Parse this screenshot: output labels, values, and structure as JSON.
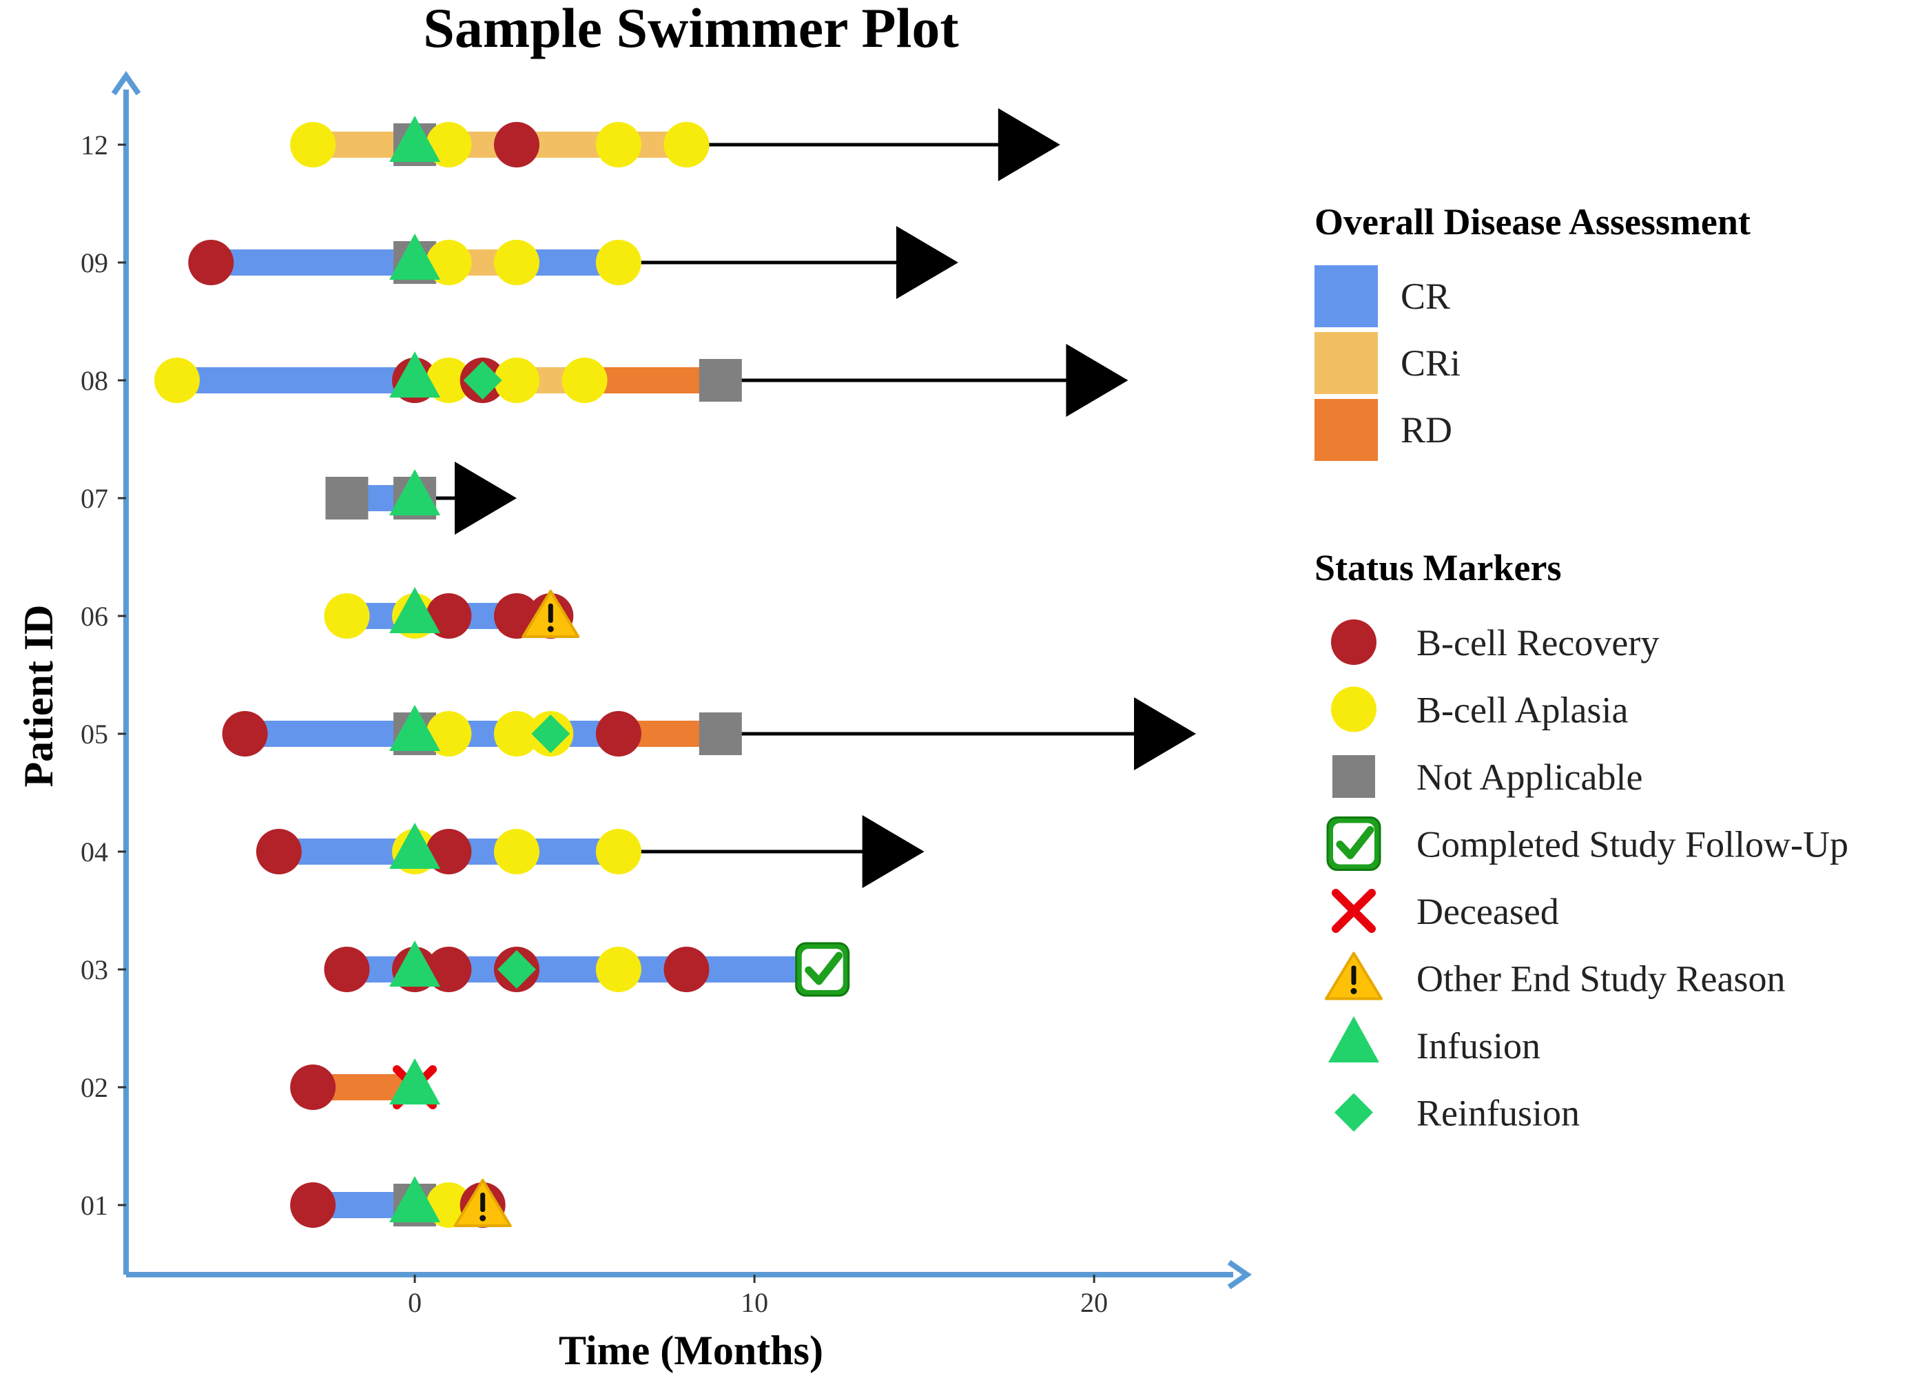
{
  "colors": {
    "CR": "#6495ED",
    "CRi": "#F2C063",
    "RD": "#ED7D31",
    "axis": "#5B9BD5",
    "recovery": "#B22228",
    "aplasia": "#F7EB0E",
    "na": "#808080",
    "completed": "#1DA01D",
    "deceased": "#E8000B",
    "other_end": "#FFC107",
    "infusion": "#22D36B",
    "reinfusion": "#22D36B",
    "arrow": "#000000"
  },
  "chart_data": {
    "type": "swimmer",
    "title": "Sample Swimmer Plot",
    "xlabel": "Time (Months)",
    "ylabel": "Patient ID",
    "xlim": [
      -8.5,
      24.5
    ],
    "x_ticks": [
      0,
      10,
      20
    ],
    "patients": [
      "01",
      "02",
      "03",
      "04",
      "05",
      "06",
      "07",
      "08",
      "09",
      "12"
    ],
    "segments": [
      {
        "patient": "01",
        "start": -3,
        "end": 2,
        "status": "CR"
      },
      {
        "patient": "02",
        "start": -3,
        "end": 0,
        "status": "RD"
      },
      {
        "patient": "03",
        "start": -2,
        "end": 12,
        "status": "CR"
      },
      {
        "patient": "04",
        "start": -4,
        "end": 6,
        "status": "CR"
      },
      {
        "patient": "05",
        "start": -5,
        "end": 6,
        "status": "CR"
      },
      {
        "patient": "05",
        "start": 6,
        "end": 9,
        "status": "RD"
      },
      {
        "patient": "06",
        "start": -2,
        "end": 4,
        "status": "CR"
      },
      {
        "patient": "07",
        "start": -2,
        "end": 0,
        "status": "CR"
      },
      {
        "patient": "08",
        "start": -7,
        "end": 0,
        "status": "CR"
      },
      {
        "patient": "08",
        "start": 0,
        "end": 5,
        "status": "CRi"
      },
      {
        "patient": "08",
        "start": 5,
        "end": 9,
        "status": "RD"
      },
      {
        "patient": "09",
        "start": -6,
        "end": 0,
        "status": "CR"
      },
      {
        "patient": "09",
        "start": 0,
        "end": 3,
        "status": "CRi"
      },
      {
        "patient": "09",
        "start": 3,
        "end": 6,
        "status": "CR"
      },
      {
        "patient": "12",
        "start": -3,
        "end": 8,
        "status": "CRi"
      }
    ],
    "arrows": [
      {
        "patient": "04",
        "start": 6,
        "end": 15
      },
      {
        "patient": "05",
        "start": 9,
        "end": 23
      },
      {
        "patient": "07",
        "start": 0,
        "end": 3
      },
      {
        "patient": "08",
        "start": 9,
        "end": 21
      },
      {
        "patient": "09",
        "start": 6,
        "end": 16
      },
      {
        "patient": "12",
        "start": 8,
        "end": 19
      }
    ],
    "markers": [
      {
        "patient": "01",
        "time": -3,
        "type": "recovery"
      },
      {
        "patient": "01",
        "time": 0,
        "type": "na"
      },
      {
        "patient": "01",
        "time": 1,
        "type": "aplasia"
      },
      {
        "patient": "01",
        "time": 2,
        "type": "recovery"
      },
      {
        "patient": "01",
        "time": 2,
        "type": "other_end"
      },
      {
        "patient": "01",
        "time": 0,
        "type": "infusion"
      },
      {
        "patient": "02",
        "time": -3,
        "type": "recovery"
      },
      {
        "patient": "02",
        "time": 0,
        "type": "deceased"
      },
      {
        "patient": "02",
        "time": 0,
        "type": "infusion"
      },
      {
        "patient": "03",
        "time": -2,
        "type": "recovery"
      },
      {
        "patient": "03",
        "time": 0,
        "type": "recovery"
      },
      {
        "patient": "03",
        "time": 1,
        "type": "recovery"
      },
      {
        "patient": "03",
        "time": 3,
        "type": "recovery"
      },
      {
        "patient": "03",
        "time": 6,
        "type": "aplasia"
      },
      {
        "patient": "03",
        "time": 8,
        "type": "recovery"
      },
      {
        "patient": "03",
        "time": 12,
        "type": "completed"
      },
      {
        "patient": "03",
        "time": 3,
        "type": "reinfusion"
      },
      {
        "patient": "03",
        "time": 0,
        "type": "infusion"
      },
      {
        "patient": "04",
        "time": -4,
        "type": "recovery"
      },
      {
        "patient": "04",
        "time": 0,
        "type": "aplasia"
      },
      {
        "patient": "04",
        "time": 1,
        "type": "recovery"
      },
      {
        "patient": "04",
        "time": 3,
        "type": "aplasia"
      },
      {
        "patient": "04",
        "time": 6,
        "type": "aplasia"
      },
      {
        "patient": "04",
        "time": 0,
        "type": "infusion"
      },
      {
        "patient": "05",
        "time": -5,
        "type": "recovery"
      },
      {
        "patient": "05",
        "time": 0,
        "type": "na"
      },
      {
        "patient": "05",
        "time": 1,
        "type": "aplasia"
      },
      {
        "patient": "05",
        "time": 3,
        "type": "aplasia"
      },
      {
        "patient": "05",
        "time": 4,
        "type": "aplasia"
      },
      {
        "patient": "05",
        "time": 6,
        "type": "recovery"
      },
      {
        "patient": "05",
        "time": 9,
        "type": "na"
      },
      {
        "patient": "05",
        "time": 4,
        "type": "reinfusion"
      },
      {
        "patient": "05",
        "time": 0,
        "type": "infusion"
      },
      {
        "patient": "06",
        "time": -2,
        "type": "aplasia"
      },
      {
        "patient": "06",
        "time": 0,
        "type": "aplasia"
      },
      {
        "patient": "06",
        "time": 1,
        "type": "recovery"
      },
      {
        "patient": "06",
        "time": 3,
        "type": "recovery"
      },
      {
        "patient": "06",
        "time": 4,
        "type": "recovery"
      },
      {
        "patient": "06",
        "time": 4,
        "type": "other_end"
      },
      {
        "patient": "06",
        "time": 0,
        "type": "infusion"
      },
      {
        "patient": "07",
        "time": -2,
        "type": "na"
      },
      {
        "patient": "07",
        "time": 0,
        "type": "na"
      },
      {
        "patient": "07",
        "time": 0,
        "type": "infusion"
      },
      {
        "patient": "08",
        "time": -7,
        "type": "aplasia"
      },
      {
        "patient": "08",
        "time": 0,
        "type": "recovery"
      },
      {
        "patient": "08",
        "time": 1,
        "type": "aplasia"
      },
      {
        "patient": "08",
        "time": 2,
        "type": "recovery"
      },
      {
        "patient": "08",
        "time": 3,
        "type": "aplasia"
      },
      {
        "patient": "08",
        "time": 5,
        "type": "aplasia"
      },
      {
        "patient": "08",
        "time": 9,
        "type": "na"
      },
      {
        "patient": "08",
        "time": 2,
        "type": "reinfusion"
      },
      {
        "patient": "08",
        "time": 0,
        "type": "infusion"
      },
      {
        "patient": "09",
        "time": -6,
        "type": "recovery"
      },
      {
        "patient": "09",
        "time": 0,
        "type": "na"
      },
      {
        "patient": "09",
        "time": 1,
        "type": "aplasia"
      },
      {
        "patient": "09",
        "time": 3,
        "type": "aplasia"
      },
      {
        "patient": "09",
        "time": 6,
        "type": "aplasia"
      },
      {
        "patient": "09",
        "time": 0,
        "type": "infusion"
      },
      {
        "patient": "12",
        "time": -3,
        "type": "aplasia"
      },
      {
        "patient": "12",
        "time": 0,
        "type": "na"
      },
      {
        "patient": "12",
        "time": 1,
        "type": "aplasia"
      },
      {
        "patient": "12",
        "time": 3,
        "type": "recovery"
      },
      {
        "patient": "12",
        "time": 6,
        "type": "aplasia"
      },
      {
        "patient": "12",
        "time": 8,
        "type": "aplasia"
      },
      {
        "patient": "12",
        "time": 0,
        "type": "infusion"
      }
    ],
    "legend": {
      "placement": "right",
      "disease_title": "Overall Disease Assessment",
      "disease_items": [
        {
          "key": "CR",
          "label": "CR"
        },
        {
          "key": "CRi",
          "label": "CRi"
        },
        {
          "key": "RD",
          "label": "RD"
        }
      ],
      "status_title": "Status Markers",
      "status_items": [
        {
          "key": "recovery",
          "label": "B-cell Recovery"
        },
        {
          "key": "aplasia",
          "label": "B-cell Aplasia"
        },
        {
          "key": "na",
          "label": "Not Applicable"
        },
        {
          "key": "completed",
          "label": "Completed Study Follow-Up"
        },
        {
          "key": "deceased",
          "label": "Deceased"
        },
        {
          "key": "other_end",
          "label": "Other End Study Reason"
        },
        {
          "key": "infusion",
          "label": "Infusion"
        },
        {
          "key": "reinfusion",
          "label": "Reinfusion"
        }
      ]
    }
  }
}
